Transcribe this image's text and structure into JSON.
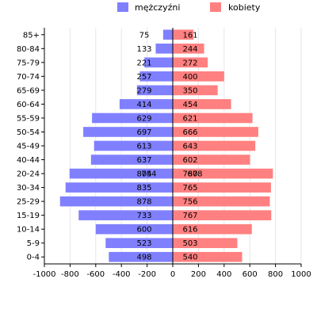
{
  "chart_data": {
    "type": "bar",
    "orientation": "horizontal",
    "layout": "population-pyramid",
    "categories": [
      "0-4",
      "5-9",
      "10-14",
      "15-19",
      "25-29",
      "30-34",
      "20-24",
      "40-44",
      "45-49",
      "50-54",
      "55-59",
      "60-64",
      "65-69",
      "70-74",
      "75-79",
      "80-84",
      "85+"
    ],
    "series": [
      {
        "name": "mężczyźni",
        "color": "#8080ff",
        "side": "left",
        "values": [
          498,
          523,
          600,
          733,
          878,
          835,
          804,
          637,
          613,
          697,
          629,
          414,
          279,
          257,
          221,
          133,
          75
        ],
        "overlay_labels": {
          "20-24": 754
        }
      },
      {
        "name": "kobiety",
        "color": "#ff8080",
        "side": "right",
        "values": [
          540,
          503,
          616,
          767,
          756,
          765,
          780,
          602,
          643,
          666,
          621,
          454,
          350,
          400,
          272,
          244,
          161
        ],
        "overlay_labels": {
          "20-24": 678
        }
      }
    ],
    "xlim": [
      -1000,
      1000
    ],
    "xticks": [
      -1000,
      -800,
      -600,
      -400,
      -200,
      0,
      200,
      400,
      600,
      800,
      1000
    ],
    "xlabel": "",
    "ylabel": "",
    "title": "",
    "grid": "vertical",
    "legend_position": "top"
  }
}
